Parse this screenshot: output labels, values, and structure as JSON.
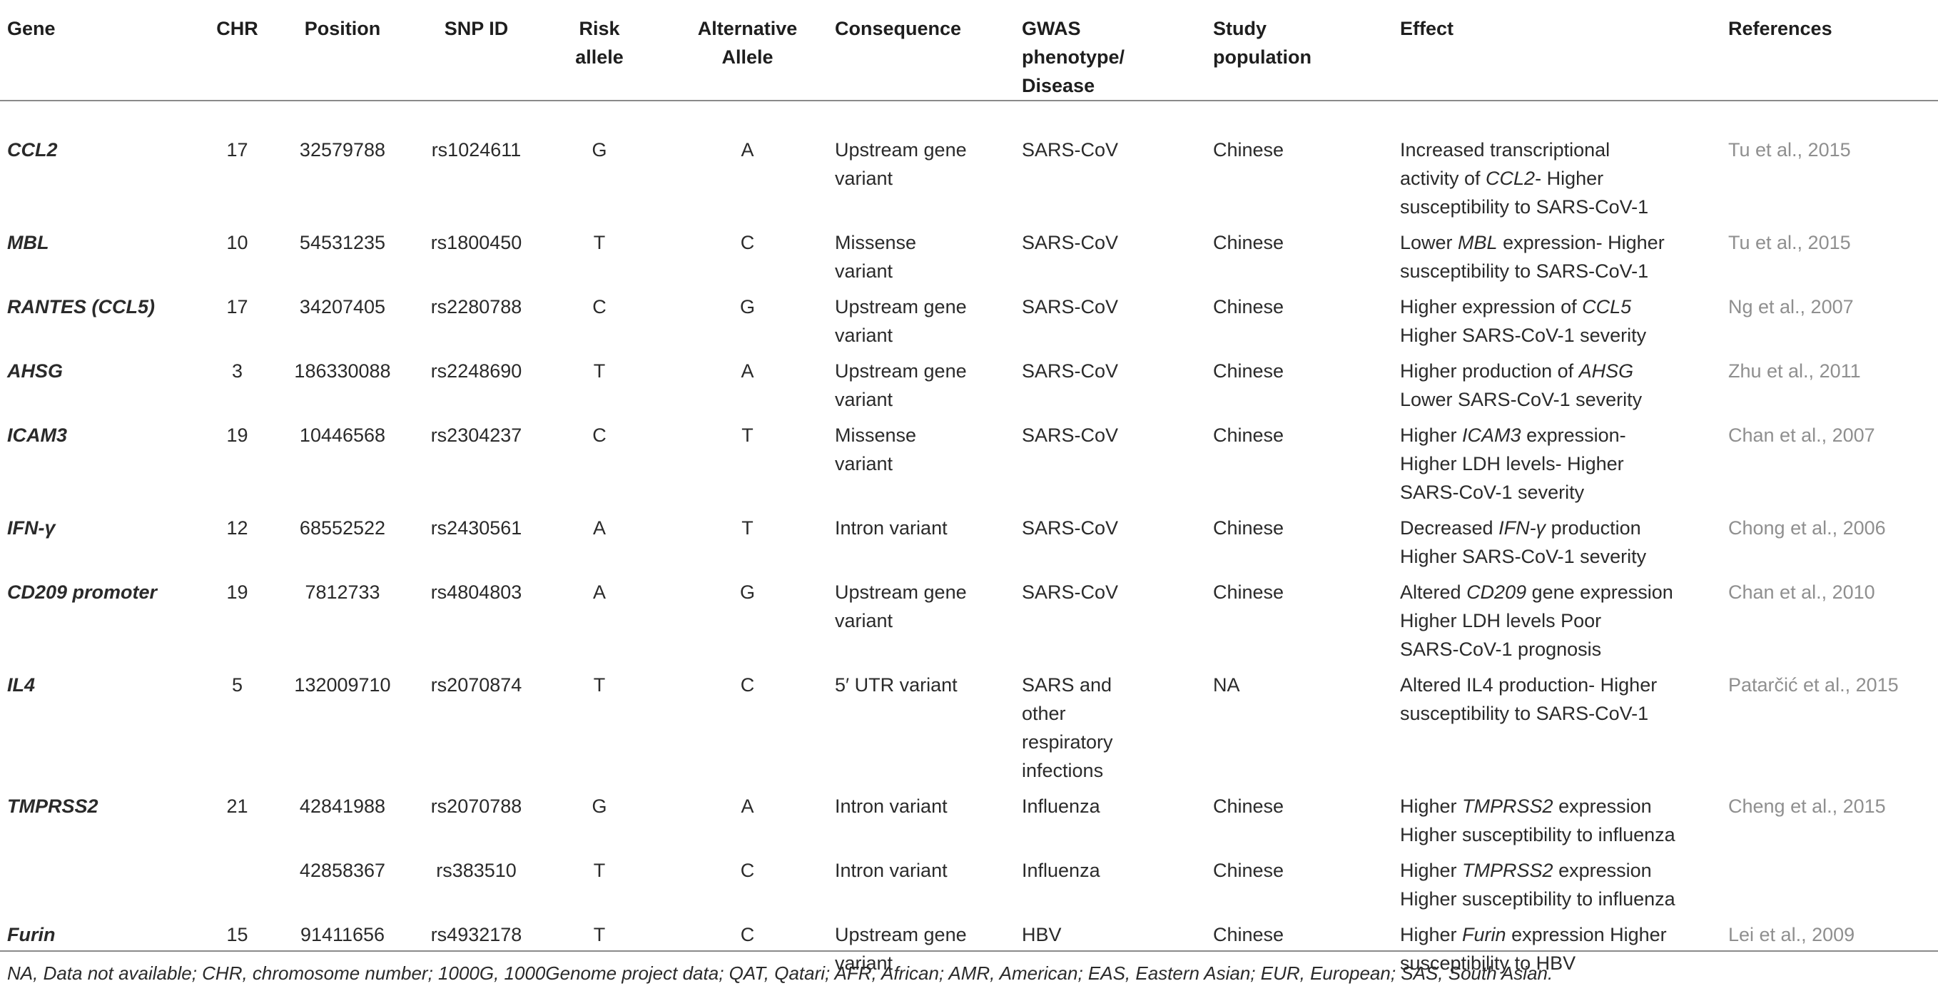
{
  "headers": {
    "gene": "Gene",
    "chr": "CHR",
    "position": "Position",
    "snp": "SNP ID",
    "risk_line1": "Risk",
    "risk_line2": "allele",
    "alt_line1": "Alternative",
    "alt_line2": "Allele",
    "consequence": "Consequence",
    "gwas_line1": "GWAS",
    "gwas_line2": "phenotype/",
    "gwas_line3": "Disease",
    "study_line1": "Study",
    "study_line2": "population",
    "effect": "Effect",
    "references": "References"
  },
  "rows": [
    {
      "gene": "CCL2",
      "chr": "17",
      "position": "32579788",
      "snp": "rs1024611",
      "risk": "G",
      "alt": "A",
      "consequence": [
        "Upstream gene",
        "variant"
      ],
      "gwas": [
        "SARS-CoV"
      ],
      "population": "Chinese",
      "effect": [
        "Increased transcriptional",
        "activity of CCL2- Higher",
        "susceptibility to SARS-CoV-1"
      ],
      "ref": "Tu et al., 2015"
    },
    {
      "gene": "MBL",
      "chr": "10",
      "position": "54531235",
      "snp": "rs1800450",
      "risk": "T",
      "alt": "C",
      "consequence": [
        "Missense",
        "variant"
      ],
      "gwas": [
        "SARS-CoV"
      ],
      "population": "Chinese",
      "effect": [
        "Lower MBL expression- Higher",
        "susceptibility to SARS-CoV-1"
      ],
      "ref": "Tu et al., 2015"
    },
    {
      "gene": "RANTES (CCL5)",
      "chr": "17",
      "position": "34207405",
      "snp": "rs2280788",
      "risk": "C",
      "alt": "G",
      "consequence": [
        "Upstream gene",
        "variant"
      ],
      "gwas": [
        "SARS-CoV"
      ],
      "population": "Chinese",
      "effect": [
        "Higher expression of CCL5",
        "Higher SARS-CoV-1 severity"
      ],
      "ref": "Ng et al., 2007"
    },
    {
      "gene": "AHSG",
      "chr": "3",
      "position": "186330088",
      "snp": "rs2248690",
      "risk": "T",
      "alt": "A",
      "consequence": [
        "Upstream gene",
        "variant"
      ],
      "gwas": [
        "SARS-CoV"
      ],
      "population": "Chinese",
      "effect": [
        "Higher production of AHSG",
        "Lower SARS-CoV-1 severity"
      ],
      "ref": "Zhu et al., 2011"
    },
    {
      "gene": "ICAM3",
      "chr": "19",
      "position": "10446568",
      "snp": "rs2304237",
      "risk": "C",
      "alt": "T",
      "consequence": [
        "Missense",
        "variant"
      ],
      "gwas": [
        "SARS-CoV"
      ],
      "population": "Chinese",
      "effect": [
        "Higher ICAM3 expression-",
        "Higher LDH levels- Higher",
        "SARS-CoV-1 severity"
      ],
      "ref": "Chan et al., 2007"
    },
    {
      "gene": "IFN-γ",
      "chr": "12",
      "position": "68552522",
      "snp": "rs2430561",
      "risk": "A",
      "alt": "T",
      "consequence": [
        "Intron variant"
      ],
      "gwas": [
        "SARS-CoV"
      ],
      "population": "Chinese",
      "effect": [
        "Decreased IFN-γ production",
        "Higher SARS-CoV-1 severity"
      ],
      "ref": "Chong et al., 2006"
    },
    {
      "gene": "CD209 promoter",
      "chr": "19",
      "position": "7812733",
      "snp": "rs4804803",
      "risk": "A",
      "alt": "G",
      "consequence": [
        "Upstream gene",
        "variant"
      ],
      "gwas": [
        "SARS-CoV"
      ],
      "population": "Chinese",
      "effect": [
        "Altered CD209 gene expression",
        "Higher LDH levels Poor",
        "SARS-CoV-1 prognosis"
      ],
      "ref": "Chan et al., 2010"
    },
    {
      "gene": "IL4",
      "chr": "5",
      "position": "132009710",
      "snp": "rs2070874",
      "risk": "T",
      "alt": "C",
      "consequence": [
        "5′ UTR variant"
      ],
      "gwas": [
        "SARS and",
        "other",
        "respiratory",
        "infections"
      ],
      "population": "NA",
      "effect": [
        "Altered IL4 production- Higher",
        "susceptibility to SARS-CoV-1"
      ],
      "ref": "Patarčić et al., 2015"
    },
    {
      "gene": "TMPRSS2",
      "chr": "21",
      "position": "42841988",
      "snp": "rs2070788",
      "risk": "G",
      "alt": "A",
      "consequence": [
        "Intron variant"
      ],
      "gwas": [
        "Influenza"
      ],
      "population": "Chinese",
      "effect": [
        "Higher TMPRSS2 expression",
        "Higher susceptibility to influenza"
      ],
      "ref": "Cheng et al., 2015"
    },
    {
      "gene": "",
      "chr": "",
      "position": "42858367",
      "snp": "rs383510",
      "risk": "T",
      "alt": "C",
      "consequence": [
        "Intron variant"
      ],
      "gwas": [
        "Influenza"
      ],
      "population": "Chinese",
      "effect": [
        "Higher TMPRSS2 expression",
        "Higher susceptibility to influenza"
      ],
      "ref": ""
    },
    {
      "gene": "Furin",
      "chr": "15",
      "position": "91411656",
      "snp": "rs4932178",
      "risk": "T",
      "alt": "C",
      "consequence": [
        "Upstream gene",
        "variant"
      ],
      "gwas": [
        "HBV"
      ],
      "population": "Chinese",
      "effect": [
        "Higher Furin expression Higher",
        "susceptibility to HBV"
      ],
      "ref": "Lei et al., 2009"
    }
  ],
  "footnote": "NA, Data not available; CHR, chromosome number; 1000G, 1000Genome project data; QAT, Qatari; AFR, African; AMR, American; EAS, Eastern Asian; EUR, European; SAS, South Asian."
}
